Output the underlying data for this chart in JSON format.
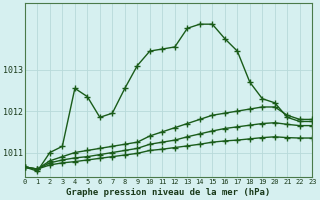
{
  "title": "Graphe pression niveau de la mer (hPa)",
  "background_color": "#d6f0f0",
  "grid_color": "#b8dada",
  "line_color": "#1a5c1a",
  "x_min": 0,
  "x_max": 23,
  "y_min": 1010.4,
  "y_max": 1014.6,
  "yticks": [
    1011,
    1012,
    1013
  ],
  "xticks": [
    0,
    1,
    2,
    3,
    4,
    5,
    6,
    7,
    8,
    9,
    10,
    11,
    12,
    13,
    14,
    15,
    16,
    17,
    18,
    19,
    20,
    21,
    22,
    23
  ],
  "series": [
    {
      "x": [
        0,
        1,
        2,
        3,
        4,
        5,
        6,
        7,
        8,
        9,
        10,
        11,
        12,
        13,
        14,
        15,
        16,
        17,
        18,
        19,
        20,
        21,
        22,
        23
      ],
      "y": [
        1010.65,
        1010.55,
        1011.0,
        1011.15,
        1012.55,
        1012.35,
        1011.85,
        1011.95,
        1012.55,
        1013.1,
        1013.45,
        1013.5,
        1013.55,
        1014.0,
        1014.1,
        1014.1,
        1013.75,
        1013.45,
        1012.7,
        1012.3,
        1012.2,
        1011.85,
        1011.75,
        1011.75
      ],
      "marker": "+",
      "markersize": 4,
      "linewidth": 1.0,
      "zorder": 4
    },
    {
      "x": [
        0,
        1,
        2,
        3,
        4,
        5,
        6,
        7,
        8,
        9,
        10,
        11,
        12,
        13,
        14,
        15,
        16,
        17,
        18,
        19,
        20,
        21,
        22,
        23
      ],
      "y": [
        1010.65,
        1010.6,
        1010.8,
        1010.9,
        1011.0,
        1011.05,
        1011.1,
        1011.15,
        1011.2,
        1011.25,
        1011.4,
        1011.5,
        1011.6,
        1011.7,
        1011.8,
        1011.9,
        1011.95,
        1012.0,
        1012.05,
        1012.1,
        1012.1,
        1011.9,
        1011.8,
        1011.8
      ],
      "marker": "+",
      "markersize": 4,
      "linewidth": 1.0,
      "zorder": 3
    },
    {
      "x": [
        0,
        1,
        2,
        3,
        4,
        5,
        6,
        7,
        8,
        9,
        10,
        11,
        12,
        13,
        14,
        15,
        16,
        17,
        18,
        19,
        20,
        21,
        22,
        23
      ],
      "y": [
        1010.65,
        1010.6,
        1010.75,
        1010.82,
        1010.87,
        1010.9,
        1010.95,
        1011.0,
        1011.05,
        1011.1,
        1011.2,
        1011.25,
        1011.3,
        1011.38,
        1011.45,
        1011.52,
        1011.58,
        1011.62,
        1011.66,
        1011.7,
        1011.72,
        1011.68,
        1011.65,
        1011.65
      ],
      "marker": "+",
      "markersize": 4,
      "linewidth": 1.0,
      "zorder": 2
    },
    {
      "x": [
        0,
        1,
        2,
        3,
        4,
        5,
        6,
        7,
        8,
        9,
        10,
        11,
        12,
        13,
        14,
        15,
        16,
        17,
        18,
        19,
        20,
        21,
        22,
        23
      ],
      "y": [
        1010.65,
        1010.6,
        1010.7,
        1010.75,
        1010.78,
        1010.82,
        1010.86,
        1010.9,
        1010.94,
        1010.98,
        1011.05,
        1011.08,
        1011.12,
        1011.16,
        1011.2,
        1011.25,
        1011.28,
        1011.3,
        1011.33,
        1011.36,
        1011.38,
        1011.36,
        1011.35,
        1011.35
      ],
      "marker": "+",
      "markersize": 4,
      "linewidth": 1.0,
      "zorder": 1
    }
  ]
}
